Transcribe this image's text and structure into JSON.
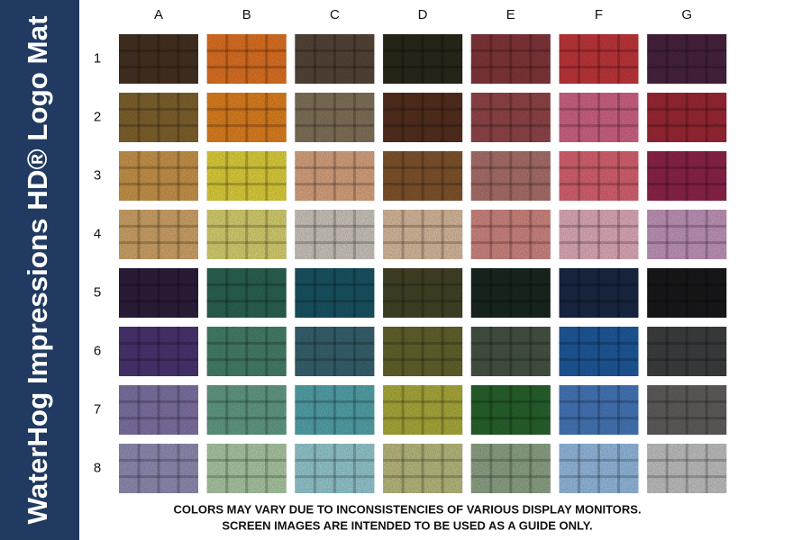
{
  "title": "WaterHog Impressions HD® Logo Mat",
  "columns": [
    "A",
    "B",
    "C",
    "D",
    "E",
    "F",
    "G"
  ],
  "rows": [
    {
      "label": "1",
      "colors": [
        "#4a3524",
        "#f07a25",
        "#5b4a3c",
        "#2e2a1c",
        "#8c3a3f",
        "#cf3a3e",
        "#4e2544"
      ]
    },
    {
      "label": "2",
      "colors": [
        "#8a6a30",
        "#f08a22",
        "#8c7a60",
        "#5a3220",
        "#9c4a4e",
        "#e06a90",
        "#a82a38"
      ]
    },
    {
      "label": "3",
      "colors": [
        "#d8a050",
        "#f0e040",
        "#e8b088",
        "#8a5a30",
        "#b87872",
        "#e86a78",
        "#982650"
      ]
    },
    {
      "label": "4",
      "colors": [
        "#e0b070",
        "#e8e078",
        "#ddd5cc",
        "#e8c8a8",
        "#e0908a",
        "#f0b8c8",
        "#d0a0c8"
      ]
    },
    {
      "label": "5",
      "colors": [
        "#302040",
        "#2e6a58",
        "#1a5a6a",
        "#48482a",
        "#1a2a22",
        "#1a2a48",
        "#1a1a1c"
      ]
    },
    {
      "label": "6",
      "colors": [
        "#50387a",
        "#4a8a70",
        "#3a6a78",
        "#6a6a30",
        "#4a5a48",
        "#2060a8",
        "#404444"
      ]
    },
    {
      "label": "7",
      "colors": [
        "#8a7ab0",
        "#6aa890",
        "#5ab0b8",
        "#b8b840",
        "#2a6a30",
        "#4a80c8",
        "#6a6464"
      ]
    },
    {
      "label": "8",
      "colors": [
        "#9a98c0",
        "#b8d8b0",
        "#a0d8e0",
        "#c8c888",
        "#98b090",
        "#a0c8f0",
        "#d0d0d0"
      ]
    }
  ],
  "note": [
    "COLORS MAY VARY DUE TO INCONSISTENCIES OF VARIOUS DISPLAY MONITORS.",
    "SCREEN IMAGES ARE INTENDED TO BE USED AS A GUIDE ONLY."
  ]
}
